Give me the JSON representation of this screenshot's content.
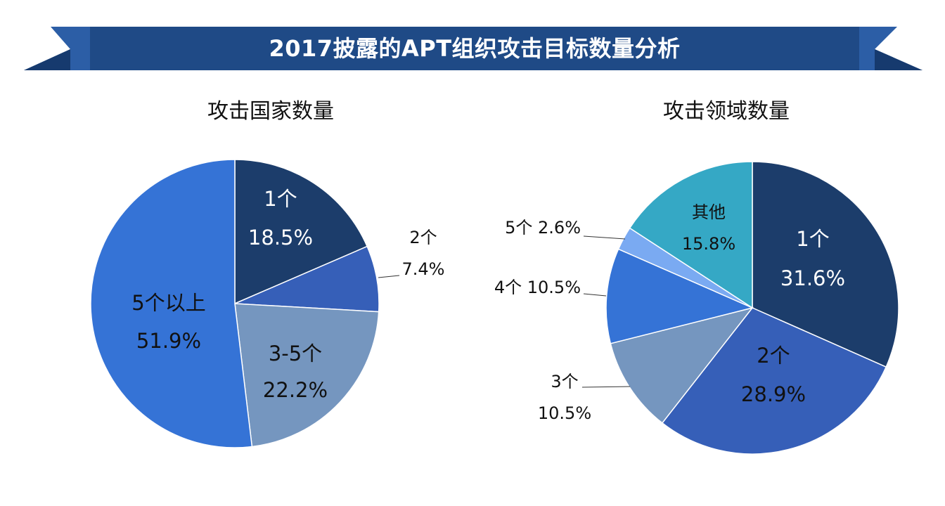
{
  "banner": {
    "title": "2017披露的APT组织攻击目标数量分析",
    "colors": {
      "main": "#1f4a86",
      "dark": "#163a6e",
      "ribbon": "#2c5ea6"
    }
  },
  "chart_data": [
    {
      "type": "pie",
      "title": "攻击国家数量",
      "slices": [
        {
          "label": "1个",
          "pct_text": "18.5%",
          "value": 18.5,
          "color": "#1c3d6b",
          "text_color": "#ffffff"
        },
        {
          "label": "2个",
          "pct_text": "7.4%",
          "value": 7.4,
          "color": "#365fb8",
          "text_color": "#111111"
        },
        {
          "label": "3-5个",
          "pct_text": "22.2%",
          "value": 22.2,
          "color": "#7596bf",
          "text_color": "#111111"
        },
        {
          "label": "5个以上",
          "pct_text": "51.9%",
          "value": 51.9,
          "color": "#3573d6",
          "text_color": "#111111"
        }
      ]
    },
    {
      "type": "pie",
      "title": "攻击领域数量",
      "slices": [
        {
          "label": "1个",
          "pct_text": "31.6%",
          "value": 31.6,
          "color": "#1c3d6b",
          "text_color": "#ffffff"
        },
        {
          "label": "2个",
          "pct_text": "28.9%",
          "value": 28.9,
          "color": "#365fb8",
          "text_color": "#111111"
        },
        {
          "label": "3个",
          "pct_text": "10.5%",
          "value": 10.5,
          "color": "#7596bf",
          "text_color": "#111111"
        },
        {
          "label": "4个",
          "pct_text": "10.5%",
          "value": 10.5,
          "color": "#3573d6",
          "text_color": "#111111"
        },
        {
          "label": "5个",
          "pct_text": "2.6%",
          "value": 2.6,
          "color": "#7aaaf2",
          "text_color": "#111111"
        },
        {
          "label": "其他",
          "pct_text": "15.8%",
          "value": 15.8,
          "color": "#35a8c5",
          "text_color": "#111111"
        }
      ]
    }
  ]
}
